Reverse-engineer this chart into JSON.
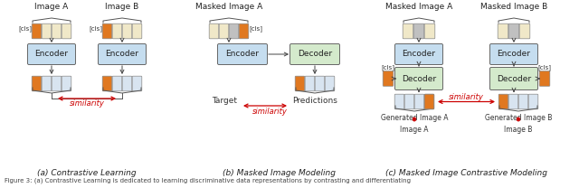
{
  "fig_width": 6.4,
  "fig_height": 2.08,
  "dpi": 100,
  "bg_color": "#ffffff",
  "caption_a": "(a) Contrastive Learning",
  "caption_b": "(b) Masked Image Modeling",
  "caption_c": "(c) Masked Image Contrastive Modeling",
  "figure_caption": "Figure 3: (a) Contrastive Learning is dedicated to learning discriminative data representations by contrasting and differentiating",
  "encoder_color": "#c5ddef",
  "decoder_color": "#d4eacc",
  "token_orange": "#e07820",
  "token_cream": "#f0e8c8",
  "token_gray": "#c0c0c0",
  "token_blue_white": "#d8e4f0",
  "similarity_color": "#cc0000",
  "arrow_color": "#444444",
  "text_color": "#111111"
}
